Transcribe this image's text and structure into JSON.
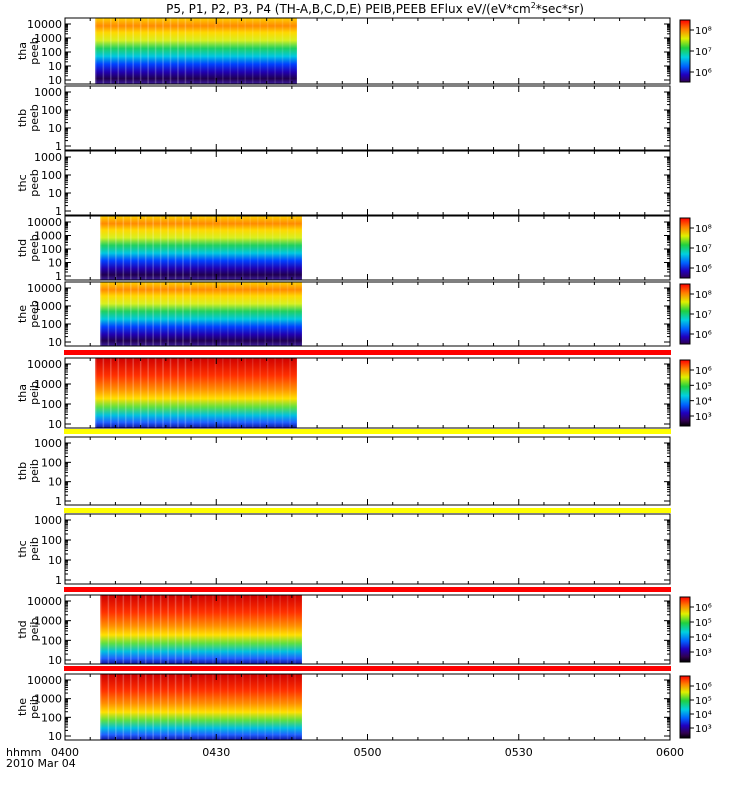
{
  "title": "P5, P1, P2, P3, P4 (TH-A,B,C,D,E) PEIB,PEEB EFlux eV/(eV*cm",
  "title_sup": "2",
  "title_tail": "*sec*sr)",
  "x_axis": {
    "label": "hhmm",
    "date": "2010 Mar 04",
    "ticks": [
      "0400",
      "0430",
      "0500",
      "0530",
      "0600"
    ]
  },
  "colors": {
    "status_red": "#ff0000",
    "status_yellow": "#ffff00"
  },
  "chart_data": [
    {
      "type": "heatmap",
      "probe": "tha",
      "product": "peeb",
      "ylabel": [
        "tha",
        "peeb"
      ],
      "y_ticks": [
        "10000",
        "1000",
        "100",
        "10",
        "10"
      ],
      "has_data": true,
      "time_range": [
        "04:06",
        "04:46"
      ],
      "colorbar_ticks": [
        "10⁸",
        "10⁷",
        "10⁶"
      ],
      "colorbar_range": "10^5.7 - 10^8.3"
    },
    {
      "type": "heatmap",
      "probe": "thb",
      "product": "peeb",
      "ylabel": [
        "thb",
        "peeb"
      ],
      "y_ticks": [
        "1000",
        "100",
        "10",
        "1"
      ],
      "has_data": false
    },
    {
      "type": "heatmap",
      "probe": "thc",
      "product": "peeb",
      "ylabel": [
        "thc",
        "peeb"
      ],
      "y_ticks": [
        "1000",
        "100",
        "10",
        "1"
      ],
      "has_data": false
    },
    {
      "type": "heatmap",
      "probe": "thd",
      "product": "peeb",
      "ylabel": [
        "thd",
        "peeb"
      ],
      "y_ticks": [
        "10000",
        "1000",
        "100",
        "10",
        "1"
      ],
      "has_data": true,
      "time_range": [
        "04:07",
        "04:47"
      ],
      "colorbar_ticks": [
        "10⁸",
        "10⁷",
        "10⁶"
      ]
    },
    {
      "type": "heatmap",
      "probe": "the",
      "product": "peeb",
      "ylabel": [
        "the",
        "peeb"
      ],
      "y_ticks": [
        "10000",
        "1000",
        "100",
        "10"
      ],
      "has_data": true,
      "time_range": [
        "04:07",
        "04:47"
      ],
      "colorbar_ticks": [
        "10⁸",
        "10⁷",
        "10⁶"
      ]
    },
    {
      "type": "heatmap",
      "probe": "tha",
      "product": "peib",
      "ylabel": [
        "tha",
        "peib"
      ],
      "y_ticks": [
        "10000",
        "1000",
        "100",
        "10"
      ],
      "has_data": true,
      "time_range": [
        "04:06",
        "04:46"
      ],
      "colorbar_ticks": [
        "10⁶",
        "10⁵",
        "10⁴",
        "10³"
      ],
      "status_bar": "red"
    },
    {
      "type": "heatmap",
      "probe": "thb",
      "product": "peib",
      "ylabel": [
        "thb",
        "peib"
      ],
      "y_ticks": [
        "1000",
        "100",
        "10",
        "1"
      ],
      "has_data": false,
      "status_bar": "yellow"
    },
    {
      "type": "heatmap",
      "probe": "thc",
      "product": "peib",
      "ylabel": [
        "thc",
        "peib"
      ],
      "y_ticks": [
        "1000",
        "100",
        "10",
        "1"
      ],
      "has_data": false,
      "status_bar": "yellow"
    },
    {
      "type": "heatmap",
      "probe": "thd",
      "product": "peib",
      "ylabel": [
        "thd",
        "peib"
      ],
      "y_ticks": [
        "10000",
        "1000",
        "100",
        "10"
      ],
      "has_data": true,
      "time_range": [
        "04:07",
        "04:47"
      ],
      "colorbar_ticks": [
        "10⁶",
        "10⁵",
        "10⁴",
        "10³"
      ],
      "status_bar": "red"
    },
    {
      "type": "heatmap",
      "probe": "the",
      "product": "peib",
      "ylabel": [
        "the",
        "peib"
      ],
      "y_ticks": [
        "10000",
        "1000",
        "100",
        "10"
      ],
      "has_data": true,
      "time_range": [
        "04:07",
        "04:47"
      ],
      "colorbar_ticks": [
        "10⁶",
        "10⁵",
        "10⁴",
        "10³"
      ],
      "status_bar": "red"
    }
  ]
}
